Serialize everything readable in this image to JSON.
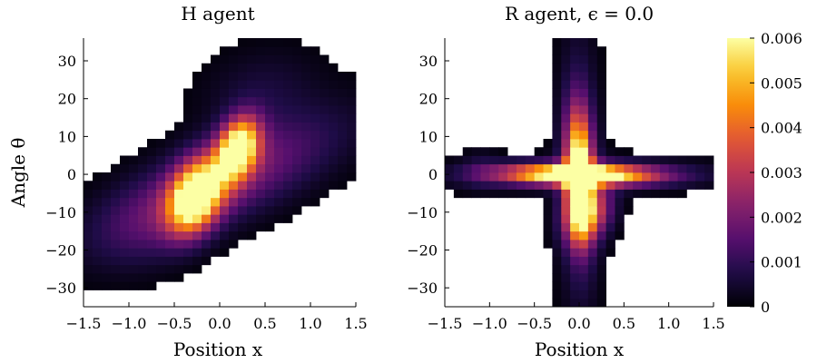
{
  "chart_data": [
    {
      "type": "heatmap",
      "title": "H agent",
      "xlabel": "Position x",
      "ylabel": "Angle θ",
      "xlim": [
        -1.5,
        1.5
      ],
      "ylim": [
        -35,
        36
      ],
      "xticks": [
        "−1.5",
        "−1.0",
        "−0.5",
        "0.0",
        "0.5",
        "1.0",
        "1.5"
      ],
      "xtick_values": [
        -1.5,
        -1.0,
        -0.5,
        0.0,
        0.5,
        1.0,
        1.5
      ],
      "yticks": [
        "−30",
        "−20",
        "−10",
        "0",
        "10",
        "20",
        "30"
      ],
      "ytick_values": [
        -30,
        -20,
        -10,
        0,
        10,
        20,
        30
      ],
      "colormap": "inferno",
      "color_range": [
        0,
        0.006
      ],
      "density_description": "occupancy histogram of a diagonal band from lower-left to upper-right with a bright core near x≈-0.2..0.3, θ≈-12..10",
      "blobs": [
        {
          "x": 0.0,
          "y": -2,
          "sx": 0.85,
          "sy": 11,
          "rho": 0.72,
          "amp": 0.0022
        },
        {
          "x": -0.27,
          "y": -6,
          "sx": 0.2,
          "sy": 6.5,
          "rho": 0.3,
          "amp": 0.0065
        },
        {
          "x": 0.2,
          "y": 7,
          "sx": 0.16,
          "sy": 5.5,
          "rho": 0.3,
          "amp": 0.0065
        },
        {
          "x": 0.45,
          "y": 22,
          "sx": 0.45,
          "sy": 8,
          "rho": 0.2,
          "amp": 0.0006
        },
        {
          "x": -0.85,
          "y": -15,
          "sx": 0.35,
          "sy": 8,
          "rho": 0.2,
          "amp": 0.0005
        }
      ]
    },
    {
      "type": "heatmap",
      "title": "R agent, ϵ = 0.0",
      "xlabel": "Position x",
      "ylabel": "",
      "xlim": [
        -1.5,
        1.5
      ],
      "ylim": [
        -35,
        36
      ],
      "xticks": [
        "−1.5",
        "−1.0",
        "−0.5",
        "0.0",
        "0.5",
        "1.0",
        "1.5"
      ],
      "xtick_values": [
        -1.5,
        -1.0,
        -0.5,
        0.0,
        0.5,
        1.0,
        1.5
      ],
      "yticks": [
        "−30",
        "−20",
        "−10",
        "0",
        "10",
        "20",
        "30"
      ],
      "ytick_values": [
        -30,
        -20,
        -10,
        0,
        10,
        20,
        30
      ],
      "colormap": "inferno",
      "color_range": [
        0,
        0.006
      ],
      "density_description": "cross-shaped occupancy: horizontal arm near θ≈0 from x≈-1.2 to 1.2, vertical arm near x≈0 from θ≈-30 to 30, bright center",
      "blobs": [
        {
          "x": 0.0,
          "y": 0,
          "sx": 0.55,
          "sy": 1.8,
          "rho": -0.1,
          "amp": 0.007
        },
        {
          "x": 0.0,
          "y": 0,
          "sx": 0.1,
          "sy": 11,
          "rho": -0.1,
          "amp": 0.0065
        },
        {
          "x": 0.0,
          "y": 0,
          "sx": 1.0,
          "sy": 2.8,
          "rho": 0.1,
          "amp": 0.0012
        },
        {
          "x": 0.0,
          "y": 0,
          "sx": 0.16,
          "sy": 25,
          "rho": -0.05,
          "amp": 0.0012
        },
        {
          "x": 0.1,
          "y": -10,
          "sx": 0.18,
          "sy": 5,
          "rho": 0.2,
          "amp": 0.0035
        },
        {
          "x": -1.1,
          "y": 2,
          "sx": 0.15,
          "sy": 4,
          "rho": 0.0,
          "amp": 0.0004
        }
      ]
    }
  ],
  "colorbar": {
    "ticks": [
      "0",
      "0.001",
      "0.002",
      "0.003",
      "0.004",
      "0.005",
      "0.006"
    ],
    "tick_values": [
      0,
      0.001,
      0.002,
      0.003,
      0.004,
      0.005,
      0.006
    ],
    "range": [
      0,
      0.006
    ]
  }
}
